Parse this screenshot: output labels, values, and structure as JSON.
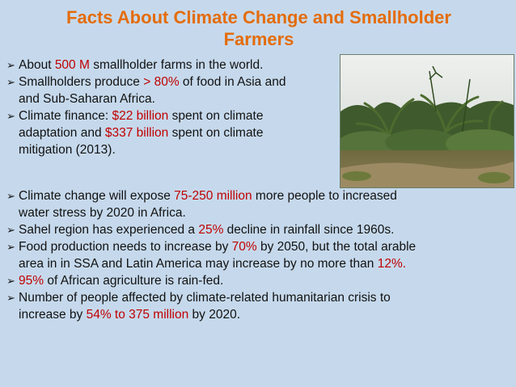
{
  "title": "Facts About Climate Change and Smallholder Farmers",
  "bullet_icon": "arrow-checkmark-icon",
  "top_facts": [
    {
      "lines": [
        [
          {
            "t": "About "
          },
          {
            "t": "500 M",
            "hl": true
          },
          {
            "t": " smallholder farms in the world."
          }
        ]
      ]
    },
    {
      "lines": [
        [
          {
            "t": "Smallholders produce "
          },
          {
            "t": "> 80%",
            "hl": true
          },
          {
            "t": " of food in Asia and"
          }
        ],
        [
          {
            "t": "and Sub-Saharan Africa."
          }
        ]
      ]
    },
    {
      "lines": [
        [
          {
            "t": "Climate finance: "
          },
          {
            "t": "$22 billion",
            "hl": true
          },
          {
            "t": " spent on climate"
          }
        ],
        [
          {
            "t": "adaptation and "
          },
          {
            "t": "$337 billion",
            "hl": true
          },
          {
            "t": " spent on climate"
          }
        ],
        [
          {
            "t": "mitigation (2013)."
          }
        ]
      ]
    }
  ],
  "bottom_facts": [
    {
      "lines": [
        [
          {
            "t": "Climate change will expose "
          },
          {
            "t": "75-250 million",
            "hl": true
          },
          {
            "t": " more people to increased"
          }
        ],
        [
          {
            "t": "water stress by 2020 in Africa."
          }
        ]
      ]
    },
    {
      "lines": [
        [
          {
            "t": "Sahel region has experienced a "
          },
          {
            "t": "25%",
            "hl": true
          },
          {
            "t": " decline in rainfall since 1960s."
          }
        ]
      ]
    },
    {
      "lines": [
        [
          {
            "t": "Food production needs to increase by "
          },
          {
            "t": "70%",
            "hl": true
          },
          {
            "t": " by 2050, but the total arable"
          }
        ],
        [
          {
            "t": "area in in SSA and Latin America may increase by no more than "
          },
          {
            "t": "12%.",
            "hl": true
          }
        ]
      ]
    },
    {
      "lines": [
        [
          {
            "t": "95%",
            "hl": true
          },
          {
            "t": " of African agriculture is rain-fed."
          }
        ]
      ]
    },
    {
      "lines": [
        [
          {
            "t": "Number of people affected by climate-related humanitarian crisis to"
          }
        ],
        [
          {
            "t": "increase by "
          },
          {
            "t": "54% to 375 million",
            "hl": true
          },
          {
            "t": " by 2020."
          }
        ]
      ]
    }
  ],
  "colors": {
    "title": "#e46c0a",
    "highlight": "#c00000",
    "background": "#c6d9ec"
  }
}
